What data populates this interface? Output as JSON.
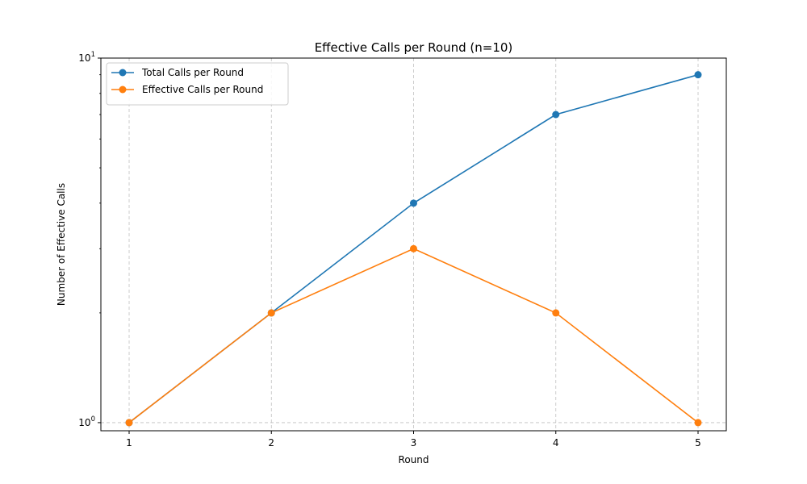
{
  "chart_data": {
    "type": "line",
    "title": "Effective Calls per Round (n=10)",
    "xlabel": "Round",
    "ylabel": "Number of Effective Calls",
    "x": [
      1,
      2,
      3,
      4,
      5
    ],
    "x_tick_labels": [
      "1",
      "2",
      "3",
      "4",
      "5"
    ],
    "y_scale": "log",
    "ylim": [
      0.95,
      10
    ],
    "y_ticks": [
      {
        "base": "10",
        "exp": "0"
      },
      {
        "base": "10",
        "exp": "1"
      }
    ],
    "grid": true,
    "legend_position": "top-left",
    "series": [
      {
        "name": "Total Calls per Round",
        "color": "#1f77b4",
        "values": [
          1,
          2,
          4,
          7,
          9
        ]
      },
      {
        "name": "Effective Calls per Round",
        "color": "#ff7f0e",
        "values": [
          1,
          2,
          3,
          2,
          1
        ]
      }
    ]
  }
}
